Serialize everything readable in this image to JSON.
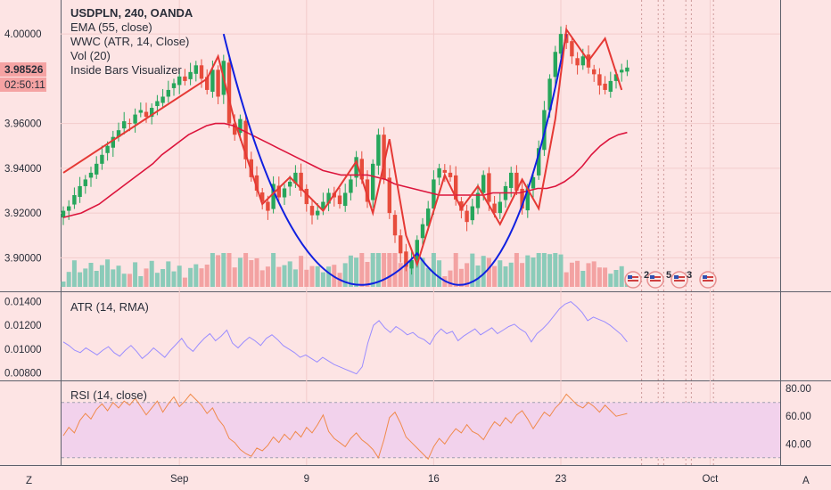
{
  "header": {
    "symbol_line": "USDPLN, 240, OANDA",
    "indicators": [
      "EMA (55, close)",
      "WWC (ATR, 14, Close)",
      "Vol (20)",
      "Inside Bars Visualizer"
    ]
  },
  "price_badge": {
    "value": "3.98526",
    "countdown": "02:50:11"
  },
  "atr_pane": {
    "title": "ATR (14, RMA)"
  },
  "rsi_pane": {
    "title": "RSI (14, close)"
  },
  "bottom_bar": {
    "left_button": "Z",
    "right_button": "A"
  },
  "event_markers": [
    "2",
    "5",
    "3"
  ],
  "colors": {
    "background": "#fde4e4",
    "up_candle": "#26a65b",
    "down_candle": "#e74c3c",
    "ema": "#dc143c",
    "zigzag": "#e53935",
    "cup_curve": "#1020e0",
    "atr_line": "#9a8cff",
    "rsi_line": "#f08a4b",
    "rsi_band": "#f2d2ec",
    "volume_up": "#7ec8b4",
    "volume_down": "#f29a9a"
  },
  "chart_data": [
    {
      "type": "candlestick",
      "title": "USDPLN, 240, OANDA",
      "x_ticks": [
        "Sep",
        "9",
        "16",
        "23",
        "Oct"
      ],
      "y_ticks": [
        "3.90000",
        "3.92000",
        "3.94000",
        "3.96000",
        "4.00000"
      ],
      "ylim": [
        3.887,
        4.012
      ],
      "last_price": 3.98526,
      "close": [
        3.921,
        3.923,
        3.928,
        3.932,
        3.935,
        3.938,
        3.942,
        3.946,
        3.95,
        3.954,
        3.957,
        3.961,
        3.96,
        3.964,
        3.966,
        3.963,
        3.967,
        3.97,
        3.972,
        3.975,
        3.978,
        3.981,
        3.979,
        3.983,
        3.986,
        3.98,
        3.975,
        3.984,
        3.972,
        3.988,
        3.96,
        3.955,
        3.962,
        3.944,
        3.936,
        3.93,
        3.925,
        3.921,
        3.933,
        3.927,
        3.931,
        3.934,
        3.938,
        3.93,
        3.924,
        3.919,
        3.921,
        3.925,
        3.929,
        3.927,
        3.924,
        3.929,
        3.935,
        3.945,
        3.935,
        3.925,
        3.942,
        3.955,
        3.935,
        3.92,
        3.91,
        3.902,
        3.896,
        3.899,
        3.908,
        3.915,
        3.922,
        3.935,
        3.94,
        3.938,
        3.936,
        3.926,
        3.921,
        3.916,
        3.923,
        3.929,
        3.937,
        3.925,
        3.92,
        3.925,
        3.932,
        3.938,
        3.93,
        3.922,
        3.931,
        3.936,
        3.949,
        3.966,
        3.98,
        3.992,
        4.0,
        3.996,
        3.99,
        3.986,
        3.99,
        3.985,
        3.982,
        3.977,
        3.975,
        3.979,
        3.982,
        3.984,
        3.985
      ],
      "ema_55": [
        3.918,
        3.919,
        3.92,
        3.922,
        3.924,
        3.927,
        3.93,
        3.933,
        3.936,
        3.939,
        3.942,
        3.946,
        3.949,
        3.952,
        3.955,
        3.957,
        3.959,
        3.96,
        3.96,
        3.959,
        3.957,
        3.955,
        3.953,
        3.951,
        3.949,
        3.947,
        3.945,
        3.943,
        3.941,
        3.939,
        3.938,
        3.937,
        3.937,
        3.937,
        3.937,
        3.936,
        3.935,
        3.933,
        3.932,
        3.931,
        3.93,
        3.929,
        3.928,
        3.928,
        3.928,
        3.928,
        3.928,
        3.928,
        3.929,
        3.929,
        3.929,
        3.929,
        3.93,
        3.931,
        3.931,
        3.932,
        3.934,
        3.937,
        3.941,
        3.946,
        3.95,
        3.953,
        3.955,
        3.956
      ],
      "zigzag": [
        [
          0,
          3.938
        ],
        [
          26,
          3.98
        ],
        [
          28,
          3.99
        ],
        [
          31,
          3.961
        ],
        [
          36,
          3.924
        ],
        [
          41,
          3.936
        ],
        [
          47,
          3.921
        ],
        [
          53,
          3.943
        ],
        [
          56,
          3.92
        ],
        [
          59,
          3.953
        ],
        [
          62,
          3.91
        ],
        [
          64,
          3.897
        ],
        [
          69,
          3.937
        ],
        [
          72,
          3.922
        ],
        [
          75,
          3.932
        ],
        [
          79,
          3.915
        ],
        [
          83,
          3.935
        ],
        [
          86,
          3.922
        ],
        [
          89,
          3.962
        ],
        [
          91,
          4.002
        ],
        [
          95,
          3.988
        ],
        [
          98,
          3.998
        ],
        [
          101,
          3.975
        ]
      ],
      "cup_curve": {
        "left": [
          29,
          4.0
        ],
        "bottom": [
          64,
          3.902
        ],
        "right": [
          91,
          4.0
        ]
      }
    },
    {
      "type": "line",
      "title": "ATR (14, RMA)",
      "y_ticks": [
        "0.00800",
        "0.01000",
        "0.01200",
        "0.01400"
      ],
      "ylim": [
        0.0075,
        0.0145
      ],
      "values": [
        0.0106,
        0.0103,
        0.0099,
        0.0097,
        0.0101,
        0.0098,
        0.0095,
        0.0099,
        0.0102,
        0.0097,
        0.0094,
        0.0099,
        0.0103,
        0.0098,
        0.0092,
        0.0096,
        0.0101,
        0.0097,
        0.0093,
        0.0099,
        0.0104,
        0.0109,
        0.0102,
        0.0098,
        0.0104,
        0.0109,
        0.0113,
        0.0107,
        0.0111,
        0.0116,
        0.0105,
        0.0101,
        0.0106,
        0.011,
        0.0107,
        0.0103,
        0.0109,
        0.0112,
        0.0108,
        0.0103,
        0.01,
        0.0097,
        0.0093,
        0.0095,
        0.0092,
        0.0089,
        0.0093,
        0.009,
        0.0087,
        0.0085,
        0.0083,
        0.0081,
        0.0079,
        0.0085,
        0.0105,
        0.012,
        0.0124,
        0.0118,
        0.0114,
        0.0119,
        0.0116,
        0.0112,
        0.0114,
        0.011,
        0.0108,
        0.0104,
        0.0112,
        0.0117,
        0.0113,
        0.0115,
        0.0107,
        0.0111,
        0.0114,
        0.0117,
        0.0112,
        0.0115,
        0.0118,
        0.0113,
        0.0116,
        0.0119,
        0.0121,
        0.0117,
        0.0114,
        0.0106,
        0.0113,
        0.0117,
        0.0122,
        0.0128,
        0.0134,
        0.0138,
        0.014,
        0.0136,
        0.0131,
        0.0124,
        0.0127,
        0.0125,
        0.0123,
        0.012,
        0.0116,
        0.0112,
        0.0106
      ]
    },
    {
      "type": "line",
      "title": "RSI (14, close)",
      "y_ticks": [
        "40.00",
        "60.00",
        "80.00"
      ],
      "ylim": [
        26,
        84
      ],
      "band": [
        30,
        70
      ],
      "values": [
        46,
        52,
        48,
        57,
        62,
        58,
        65,
        69,
        64,
        70,
        66,
        71,
        68,
        73,
        67,
        61,
        66,
        71,
        63,
        69,
        74,
        67,
        71,
        76,
        72,
        68,
        62,
        66,
        58,
        53,
        44,
        41,
        36,
        33,
        31,
        37,
        35,
        39,
        45,
        41,
        47,
        43,
        49,
        45,
        52,
        48,
        54,
        61,
        49,
        44,
        41,
        38,
        44,
        48,
        43,
        40,
        36,
        30,
        43,
        59,
        63,
        55,
        45,
        41,
        37,
        33,
        29,
        38,
        44,
        40,
        46,
        51,
        48,
        54,
        49,
        47,
        43,
        50,
        56,
        53,
        59,
        55,
        61,
        64,
        58,
        51,
        57,
        63,
        60,
        66,
        70,
        76,
        72,
        68,
        66,
        70,
        67,
        63,
        68,
        64,
        60,
        61,
        62
      ]
    }
  ]
}
